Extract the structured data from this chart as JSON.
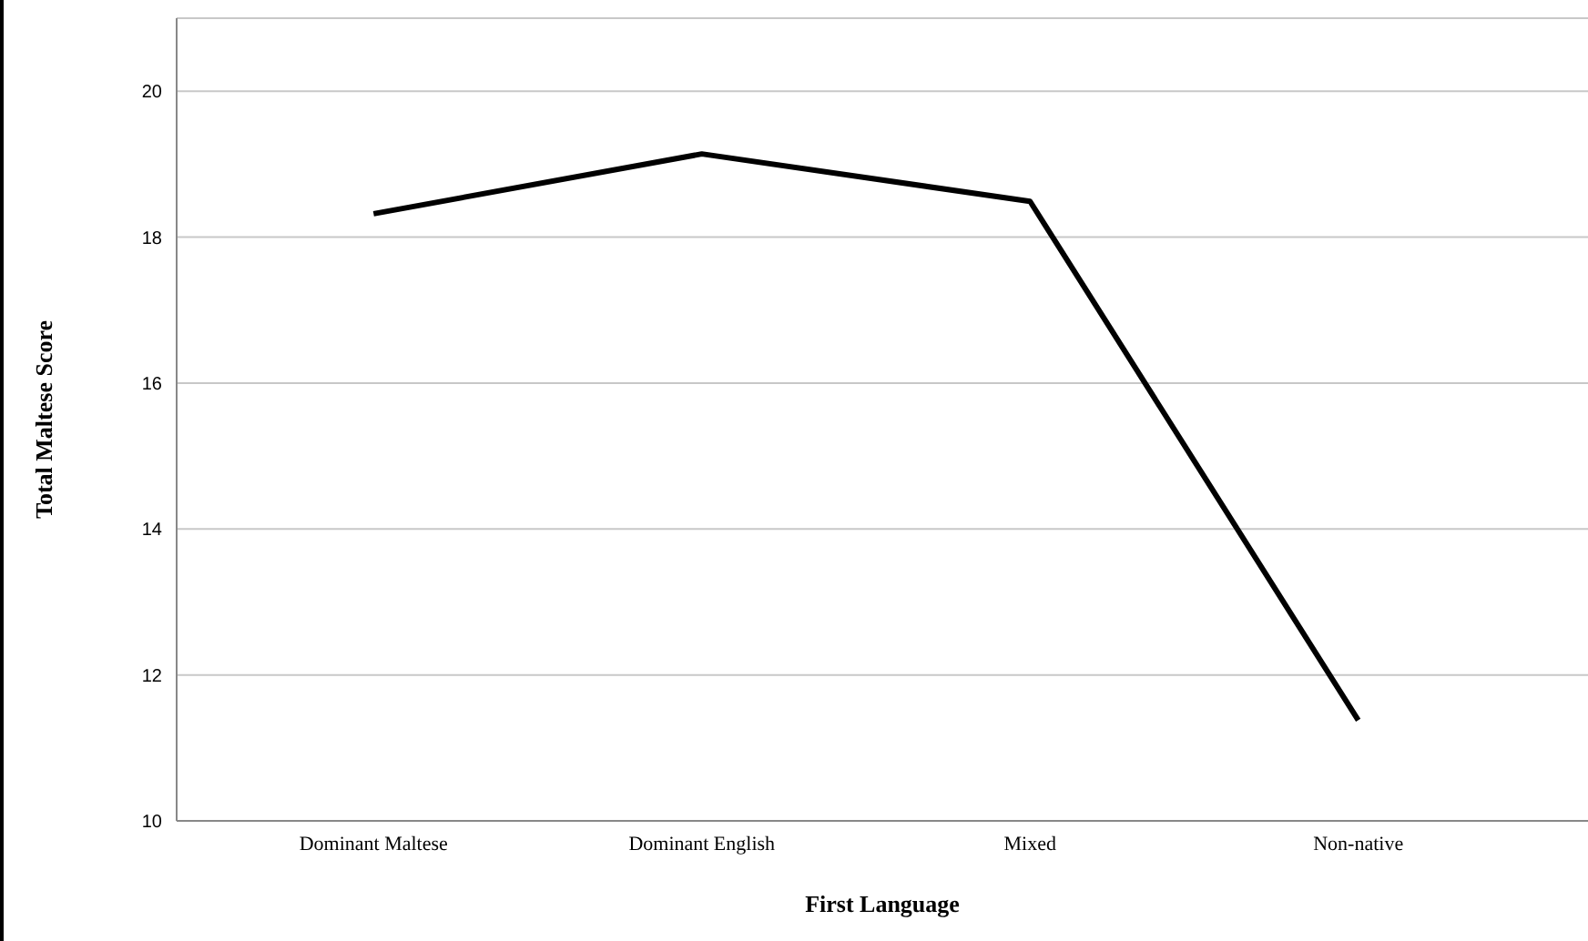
{
  "chart_data": {
    "type": "line",
    "xlabel": "First Language",
    "ylabel": "Total Maltese Score",
    "categories": [
      "Dominant Maltese",
      "Dominant English",
      "Mixed",
      "Non-native"
    ],
    "series": [
      {
        "color": "#000000",
        "values": [
          18.32,
          19.14,
          18.49,
          11.38
        ]
      }
    ],
    "ylim": [
      10,
      21
    ],
    "yticks": [
      10,
      12,
      14,
      16,
      18,
      20
    ],
    "grid": "y",
    "legend": false,
    "marker": "none",
    "line_style": "solid"
  }
}
